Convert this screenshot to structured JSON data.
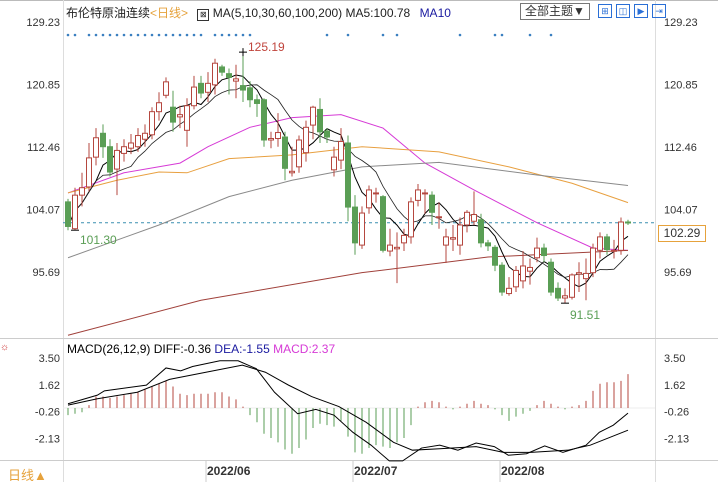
{
  "header": {
    "title": "布伦特原油连续",
    "period": "<日线>",
    "ma_label": "MA(5,10,30,60,100,200)",
    "ma5": "MA5:100.78",
    "ma10": "MA10",
    "theme_button": "全部主题▼",
    "tool_icons": [
      "grid-icon",
      "split-icon",
      "play-icon",
      "exit-icon"
    ]
  },
  "macd_header": {
    "label": "MACD(26,12,9)",
    "diff": "DIFF:-0.36",
    "dea": "DEA:-1.55",
    "macd": "MACD:2.37"
  },
  "footer": {
    "period_button": "日线▲"
  },
  "colors": {
    "up": "#b5473f",
    "down": "#5a9e55",
    "ma30": "#d63ad6",
    "ma60": "#e8a040",
    "ma100": "#8a8a8a",
    "ma200": "#a0403a",
    "accent": "#e6a23c"
  },
  "chart_data": [
    {
      "type": "candlestick",
      "title": "布伦特原油连续",
      "price_axis_ticks": [
        "129.23",
        "120.85",
        "112.46",
        "104.07",
        "95.69"
      ],
      "ylim": [
        87,
        129.23
      ],
      "last_price": "102.29",
      "annotations": {
        "high": "125.19",
        "low_left": "101.30",
        "low_right": "91.51"
      },
      "date_ticks": [
        {
          "bar": 20,
          "label": "2022/06"
        },
        {
          "bar": 41,
          "label": "2022/07"
        },
        {
          "bar": 62,
          "label": "2022/08"
        }
      ],
      "marker_bars": [
        0,
        1,
        3,
        4,
        5,
        6,
        7,
        8,
        9,
        10,
        11,
        12,
        13,
        14,
        15,
        16,
        17,
        18,
        19,
        21,
        22,
        23,
        24,
        25,
        26,
        37,
        40,
        45,
        47,
        56,
        61,
        62,
        66,
        69
      ],
      "ohlc": [
        [
          105.1,
          105.5,
          101.3,
          101.8
        ],
        [
          101.5,
          107,
          101.3,
          106
        ],
        [
          106,
          109,
          104.5,
          107
        ],
        [
          107.1,
          113,
          106.5,
          111
        ],
        [
          111.1,
          115,
          110,
          113.7
        ],
        [
          114.3,
          115.5,
          111,
          112.5
        ],
        [
          112.5,
          113.5,
          108.5,
          109.1
        ],
        [
          109.5,
          113,
          106,
          112
        ],
        [
          111.6,
          113.5,
          110.5,
          112.5
        ],
        [
          112.3,
          114.2,
          111.5,
          113
        ],
        [
          112.5,
          115,
          111.8,
          114
        ],
        [
          113.5,
          115.5,
          112.5,
          114.3
        ],
        [
          114.1,
          117.8,
          113.5,
          117.2
        ],
        [
          117.2,
          119.8,
          116,
          118.4
        ],
        [
          119.4,
          121.8,
          119,
          121.2
        ],
        [
          117.8,
          120,
          114.5,
          115.8
        ],
        [
          116.5,
          118,
          115,
          116.8
        ],
        [
          114.7,
          119,
          112.5,
          118
        ],
        [
          118,
          122,
          117.5,
          120.5
        ],
        [
          121,
          122,
          119,
          119.7
        ],
        [
          119.8,
          122.5,
          118.5,
          121
        ],
        [
          120.8,
          124.3,
          119.5,
          123.7
        ],
        [
          123.2,
          123.5,
          122,
          122.5
        ],
        [
          122.3,
          123,
          119.5,
          121.8
        ],
        [
          121.3,
          123.5,
          119,
          121.6
        ],
        [
          120.7,
          125.19,
          118.5,
          120.1
        ],
        [
          120.4,
          121.3,
          117.8,
          118.8
        ],
        [
          118.8,
          119.5,
          116.5,
          118.3
        ],
        [
          118.8,
          119,
          112.5,
          113.4
        ],
        [
          113.4,
          114.5,
          112.3,
          113.6
        ],
        [
          113.6,
          117,
          112.5,
          114.4
        ],
        [
          113.8,
          114.5,
          108,
          109.6
        ],
        [
          109,
          112.5,
          108.5,
          109.2
        ],
        [
          109.8,
          114,
          109,
          113.4
        ],
        [
          111.7,
          116,
          110.5,
          115.1
        ],
        [
          115.4,
          118,
          113.5,
          117.8
        ],
        [
          117.5,
          119,
          113,
          114.5
        ],
        [
          114.6,
          115,
          113,
          113.8
        ],
        [
          109.4,
          112.5,
          108.5,
          111.1
        ],
        [
          110.7,
          115,
          109.5,
          113.2
        ],
        [
          113,
          114,
          102.5,
          104.4
        ],
        [
          104.4,
          106,
          98,
          99.6
        ],
        [
          99.3,
          104.5,
          98.8,
          103.6
        ],
        [
          104.3,
          107.3,
          103.5,
          106.7
        ],
        [
          106.2,
          107,
          105,
          106.3
        ],
        [
          105.8,
          106,
          98.3,
          98.6
        ],
        [
          98.5,
          101.5,
          97.8,
          99.3
        ],
        [
          98.8,
          101,
          94.2,
          99
        ],
        [
          99.6,
          101.5,
          98.5,
          100.6
        ],
        [
          100.4,
          105.7,
          99.5,
          105.1
        ],
        [
          105.3,
          107.5,
          104.5,
          106.7
        ],
        [
          106.2,
          106.8,
          103.5,
          106.3
        ],
        [
          106,
          106.5,
          102,
          103.7
        ],
        [
          103,
          105,
          101.5,
          103.1
        ],
        [
          99.3,
          101.5,
          96.9,
          100.4
        ],
        [
          100.1,
          102,
          98.5,
          100.3
        ],
        [
          99.3,
          103,
          98,
          102
        ],
        [
          102,
          104,
          101,
          103.7
        ],
        [
          102.5,
          106.5,
          102,
          103.4
        ],
        [
          102.7,
          103.5,
          99,
          99.6
        ],
        [
          99.6,
          100,
          98.5,
          99.2
        ],
        [
          99,
          99.3,
          95.8,
          96.6
        ],
        [
          96.6,
          97,
          92.5,
          93
        ],
        [
          92.8,
          95,
          92.5,
          93.5
        ],
        [
          93.7,
          96.5,
          93,
          95.9
        ],
        [
          94.5,
          98.5,
          93.5,
          96.5
        ],
        [
          95.8,
          97.5,
          94,
          96.3
        ],
        [
          97.6,
          100.3,
          97,
          98.9
        ],
        [
          98.9,
          99.5,
          97,
          97.9
        ],
        [
          97,
          97.5,
          92.5,
          93
        ],
        [
          93.5,
          94.3,
          91.8,
          92.2
        ],
        [
          92.2,
          93.5,
          91.51,
          92.5
        ],
        [
          92.3,
          95.5,
          92,
          95.3
        ],
        [
          95.4,
          97,
          93,
          95.6
        ],
        [
          94.8,
          97.5,
          91.9,
          95.5
        ],
        [
          95.6,
          99.5,
          95,
          98.9
        ],
        [
          98.6,
          101,
          97.5,
          100.4
        ],
        [
          100.4,
          100.8,
          98,
          98.7
        ],
        [
          98.5,
          100,
          97.5,
          98.6
        ],
        [
          98.6,
          103,
          98,
          102.4
        ],
        [
          102.4,
          102.7,
          102,
          102.29
        ]
      ],
      "moving_averages": {
        "MA30": [
          [
            0,
            106.3
          ],
          [
            8,
            109
          ],
          [
            16,
            110.3
          ],
          [
            20,
            112.5
          ],
          [
            26,
            115.1
          ],
          [
            32,
            116.4
          ],
          [
            39,
            116.8
          ],
          [
            45,
            115
          ],
          [
            51,
            110.3
          ],
          [
            58,
            106.7
          ],
          [
            67,
            102.3
          ],
          [
            75,
            98.9
          ],
          [
            80,
            98.6
          ]
        ],
        "MA60": [
          [
            0,
            106.3
          ],
          [
            7,
            108
          ],
          [
            13,
            109.1
          ],
          [
            17,
            109
          ],
          [
            23,
            110.9
          ],
          [
            32,
            111.4
          ],
          [
            42,
            112.5
          ],
          [
            53,
            111.8
          ],
          [
            63,
            109.8
          ],
          [
            72,
            107.6
          ],
          [
            80,
            105
          ]
        ],
        "MA100": [
          [
            0,
            97.6
          ],
          [
            13,
            102
          ],
          [
            23,
            105.8
          ],
          [
            32,
            108
          ],
          [
            42,
            109.8
          ],
          [
            53,
            110.4
          ],
          [
            67,
            108.7
          ],
          [
            80,
            107.3
          ]
        ],
        "MA200": [
          [
            0,
            87.2
          ],
          [
            19,
            91.9
          ],
          [
            42,
            95.6
          ],
          [
            60,
            97.7
          ],
          [
            80,
            98.6
          ]
        ]
      }
    },
    {
      "type": "macd",
      "title": "MACD(26,12,9)",
      "axis_ticks": [
        "3.50",
        "1.62",
        "-0.26",
        "-2.13"
      ],
      "ylim": [
        -4.2,
        3.9
      ],
      "histogram": [
        -0.5,
        -0.4,
        -0.3,
        0.2,
        0.8,
        0.8,
        0.7,
        0.8,
        0.9,
        1.0,
        1.1,
        1.3,
        1.5,
        1.7,
        1.9,
        1.5,
        1.0,
        0.9,
        1.0,
        1.0,
        1.0,
        1.1,
        1.1,
        0.8,
        0.6,
        0.1,
        -0.5,
        -1.0,
        -1.8,
        -2.1,
        -2.4,
        -2.9,
        -3.2,
        -2.8,
        -2.2,
        -1.4,
        -1.1,
        -1.2,
        -1.3,
        -0.9,
        -2.0,
        -3.1,
        -3.2,
        -2.8,
        -2.6,
        -2.7,
        -2.8,
        -2.4,
        -2.1,
        -1.2,
        0.1,
        0.4,
        0.5,
        0.4,
        0.1,
        -0.1,
        0.1,
        0.3,
        0.5,
        0.3,
        0.2,
        -0.1,
        -0.5,
        -0.9,
        -0.6,
        -0.4,
        -0.2,
        0.2,
        0.5,
        0.3,
        0.1,
        -0.1,
        0.1,
        0.2,
        0.5,
        1.2,
        1.7,
        1.8,
        1.8,
        1.9,
        2.37
      ],
      "DIFF": [
        [
          0,
          0.3
        ],
        [
          4.2,
          0.9
        ],
        [
          5.2,
          1.2
        ],
        [
          11.2,
          1.6
        ],
        [
          14,
          2.8
        ],
        [
          16.1,
          2.6
        ],
        [
          17.8,
          2.9
        ],
        [
          21.7,
          3.3
        ],
        [
          24.3,
          3.3
        ],
        [
          26.9,
          2.75
        ],
        [
          29.5,
          1.1
        ],
        [
          32.8,
          -0.4
        ],
        [
          35.4,
          -0.1
        ],
        [
          38,
          -0.5
        ],
        [
          40.7,
          -1.7
        ],
        [
          43.3,
          -2.6
        ],
        [
          45.9,
          -3.7
        ],
        [
          47.8,
          -3.7
        ],
        [
          50.5,
          -2.8
        ],
        [
          53.1,
          -2.6
        ],
        [
          55.7,
          -2.95
        ],
        [
          58.3,
          -2.45
        ],
        [
          60.9,
          -2.7
        ],
        [
          62.9,
          -3.3
        ],
        [
          65.5,
          -3.2
        ],
        [
          68.1,
          -2.65
        ],
        [
          70.7,
          -3.1
        ],
        [
          74,
          -2.6
        ],
        [
          75.9,
          -1.7
        ],
        [
          77.9,
          -1.2
        ],
        [
          80,
          -0.36
        ]
      ],
      "DEA": [
        [
          0,
          0.2
        ],
        [
          4.2,
          0.65
        ],
        [
          9.9,
          1.1
        ],
        [
          14.5,
          2.0
        ],
        [
          19.7,
          2.5
        ],
        [
          24.9,
          3.0
        ],
        [
          28.2,
          2.5
        ],
        [
          31.5,
          1.6
        ],
        [
          34.8,
          0.8
        ],
        [
          38.7,
          0.1
        ],
        [
          42.6,
          -1.0
        ],
        [
          46.5,
          -2.4
        ],
        [
          49.2,
          -2.95
        ],
        [
          53.1,
          -2.85
        ],
        [
          58.3,
          -2.7
        ],
        [
          62.2,
          -3.1
        ],
        [
          66.1,
          -3.1
        ],
        [
          71.4,
          -2.95
        ],
        [
          74.6,
          -2.6
        ],
        [
          80,
          -1.55
        ]
      ]
    }
  ]
}
